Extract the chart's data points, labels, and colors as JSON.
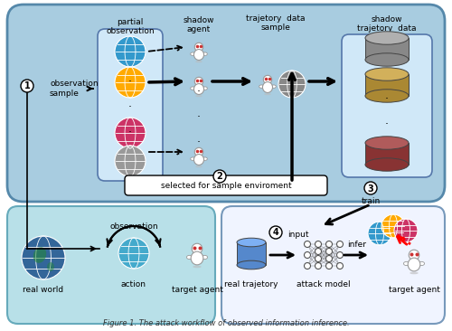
{
  "bg_outer": "#ffffff",
  "bg_top_box": "#a8cce0",
  "bg_bottom_left": "#b8e0e8",
  "bg_bottom_right": "#f0f4ff",
  "inner_box_color": "#c8dff0",
  "border_top": "#5588aa",
  "border_bottom_left": "#66aabb",
  "border_bottom_right": "#7799bb",
  "title": "Figure 1. The attack workflow of observed information inference.",
  "globe_colors_left": [
    "#3399cc",
    "#ffaa00",
    "#cc3366",
    "#999999"
  ],
  "globe_colors_right": [
    "#3399cc",
    "#ffaa00",
    "#cc3366"
  ],
  "db_colors": [
    "#888888",
    "#aa8833",
    "#883333"
  ],
  "labels": {
    "partial_obs": "partial\nobservation",
    "shadow_agent": "shadow\nagent",
    "traj_sample": "trajetory  data\nsample",
    "shadow_traj": "shadow\ntrajetory  data",
    "obs_sample": "observation\nsample",
    "sel_env": "selected for sample enviroment",
    "train": "train",
    "real_world": "real world",
    "observation": "observation",
    "action": "action",
    "target_agent_left": "target agent",
    "real_traj": "real trajetory",
    "attack_model": "attack model",
    "target_agent_right": "target agent",
    "input": "input",
    "infer": "infer"
  }
}
